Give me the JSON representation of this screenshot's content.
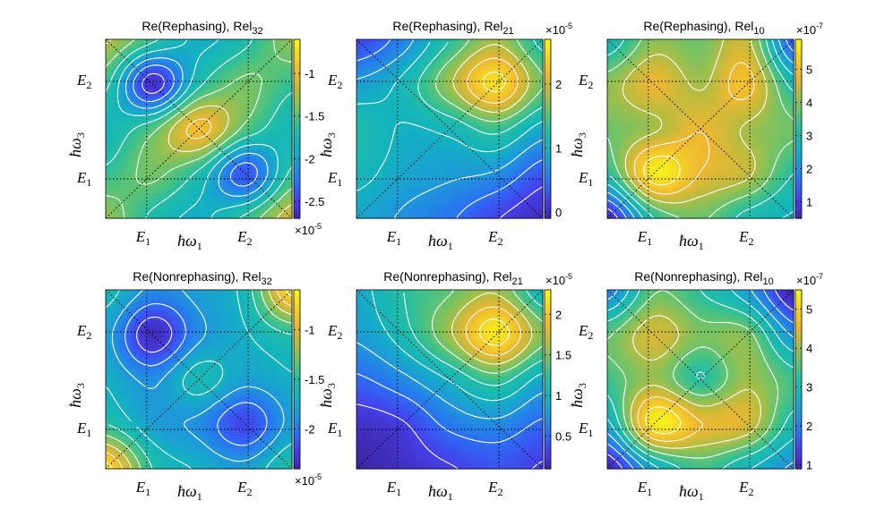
{
  "figure": {
    "xlabel": "ħω",
    "xlabel_sub": "1",
    "ylabel": "ħω",
    "ylabel_sub": "3"
  },
  "ticks": {
    "x": [
      {
        "main": "E",
        "sub": "1"
      },
      {
        "main": "E",
        "sub": "2"
      }
    ],
    "y": [
      {
        "main": "E",
        "sub": "2"
      },
      {
        "main": "E",
        "sub": "1"
      }
    ]
  },
  "colormap": [
    "#3e26a8",
    "#4640ea",
    "#2b6ff4",
    "#1f96db",
    "#13b3c0",
    "#23bea2",
    "#64c46e",
    "#b0bd43",
    "#eeb731",
    "#f4d427",
    "#f9fb15"
  ],
  "chart_data": [
    {
      "type": "heatmap",
      "title_main": "Re(Rephasing), Rel",
      "title_sub": "32",
      "xlabel": "ħω1",
      "ylabel": "ħω3",
      "grid": {
        "x": [
          0,
          0.25,
          0.5,
          0.75,
          1
        ],
        "y": [
          0,
          0.25,
          0.5,
          0.75,
          1
        ]
      },
      "values": [
        [
          -1.2,
          -1.6,
          -1.9,
          -1.7,
          -1.3
        ],
        [
          -1.6,
          -2.6,
          -1.7,
          -1.4,
          -1.6
        ],
        [
          -1.8,
          -1.5,
          -0.95,
          -1.5,
          -1.8
        ],
        [
          -1.6,
          -1.4,
          -1.7,
          -2.4,
          -1.6
        ],
        [
          -1.3,
          -1.7,
          -1.9,
          -1.6,
          -1.1
        ]
      ],
      "colorbar": {
        "min": -2.7,
        "max": -0.6,
        "ticks": [
          "-1",
          "-1.5",
          "-2",
          "-2.5"
        ],
        "tick_values": [
          -1,
          -1.5,
          -2,
          -2.5
        ],
        "multiplier": "×10",
        "exponent": "-5",
        "multiplier_pos": "bottom"
      }
    },
    {
      "type": "heatmap",
      "title_main": "Re(Rephasing), Rel",
      "title_sub": "21",
      "xlabel": "ħω1",
      "ylabel": "ħω3",
      "grid": {
        "x": [
          0,
          0.25,
          0.5,
          0.75,
          1
        ],
        "y": [
          0,
          0.25,
          0.5,
          0.75,
          1
        ]
      },
      "values": [
        [
          0.2,
          0.6,
          1.3,
          1.8,
          1.2
        ],
        [
          0.8,
          1.1,
          1.8,
          2.5,
          1.6
        ],
        [
          1.2,
          1.0,
          1.1,
          1.4,
          0.9
        ],
        [
          1.1,
          0.9,
          0.8,
          0.7,
          0.3
        ],
        [
          0.9,
          0.7,
          0.5,
          0.2,
          0.0
        ]
      ],
      "colorbar": {
        "min": -0.1,
        "max": 2.7,
        "ticks": [
          "2",
          "1",
          "0"
        ],
        "tick_values": [
          2,
          1,
          0
        ],
        "multiplier": "×10",
        "exponent": "-5",
        "multiplier_pos": "top"
      }
    },
    {
      "type": "heatmap",
      "title_main": "Re(Rephasing), Rel",
      "title_sub": "10",
      "xlabel": "ħω1",
      "ylabel": "ħω3",
      "grid": {
        "x": [
          0,
          0.25,
          0.5,
          0.75,
          1
        ],
        "y": [
          0,
          0.25,
          0.5,
          0.75,
          1
        ]
      },
      "values": [
        [
          2.8,
          4.0,
          3.8,
          4.4,
          1.2
        ],
        [
          4.0,
          4.8,
          4.2,
          5.0,
          3.0
        ],
        [
          3.8,
          4.2,
          4.8,
          4.2,
          3.8
        ],
        [
          3.2,
          5.7,
          4.8,
          4.4,
          3.2
        ],
        [
          0.6,
          3.2,
          3.8,
          3.0,
          2.6
        ]
      ],
      "colorbar": {
        "min": 0.5,
        "max": 5.9,
        "ticks": [
          "5",
          "4",
          "3",
          "2",
          "1"
        ],
        "tick_values": [
          5,
          4,
          3,
          2,
          1
        ],
        "multiplier": "×10",
        "exponent": "-7",
        "multiplier_pos": "top"
      }
    },
    {
      "type": "heatmap",
      "title_main": "Re(Nonrephasing), Rel",
      "title_sub": "32",
      "xlabel": "ħω1",
      "ylabel": "ħω3",
      "grid": {
        "x": [
          0,
          0.25,
          0.5,
          0.75,
          1
        ],
        "y": [
          0,
          0.25,
          0.5,
          0.75,
          1
        ]
      },
      "values": [
        [
          -1.6,
          -1.9,
          -1.8,
          -1.6,
          -0.7
        ],
        [
          -1.8,
          -2.35,
          -1.9,
          -1.7,
          -1.5
        ],
        [
          -1.7,
          -1.9,
          -1.6,
          -1.8,
          -1.7
        ],
        [
          -1.5,
          -1.8,
          -1.9,
          -2.2,
          -1.8
        ],
        [
          -0.7,
          -1.5,
          -1.7,
          -1.8,
          -1.5
        ]
      ],
      "colorbar": {
        "min": -2.4,
        "max": -0.6,
        "ticks": [
          "-1",
          "-1.5",
          "-2"
        ],
        "tick_values": [
          -1,
          -1.5,
          -2
        ],
        "multiplier": "×10",
        "exponent": "-5",
        "multiplier_pos": "bottom"
      }
    },
    {
      "type": "heatmap",
      "title_main": "Re(Nonrephasing), Rel",
      "title_sub": "21",
      "xlabel": "ħω1",
      "ylabel": "ħω3",
      "grid": {
        "x": [
          0,
          0.25,
          0.5,
          0.75,
          1
        ],
        "y": [
          0,
          0.25,
          0.5,
          0.75,
          1
        ]
      },
      "values": [
        [
          0.9,
          1.2,
          1.4,
          1.6,
          1.0
        ],
        [
          0.8,
          1.1,
          1.6,
          2.2,
          1.5
        ],
        [
          0.5,
          0.7,
          1.0,
          1.3,
          0.9
        ],
        [
          0.2,
          0.3,
          0.6,
          0.7,
          0.5
        ],
        [
          0.1,
          0.2,
          0.3,
          0.4,
          0.3
        ]
      ],
      "colorbar": {
        "min": 0.1,
        "max": 2.3,
        "ticks": [
          "2",
          "1.5",
          "1",
          "0.5"
        ],
        "tick_values": [
          2,
          1.5,
          1,
          0.5
        ],
        "multiplier": "×10",
        "exponent": "-5",
        "multiplier_pos": "top"
      }
    },
    {
      "type": "heatmap",
      "title_main": "Re(Nonrephasing), Rel",
      "title_sub": "10",
      "xlabel": "ħω1",
      "ylabel": "ħω3",
      "grid": {
        "x": [
          0,
          0.25,
          0.5,
          0.75,
          1
        ],
        "y": [
          0,
          0.25,
          0.5,
          0.75,
          1
        ]
      },
      "values": [
        [
          2.0,
          3.6,
          3.2,
          2.4,
          0.8
        ],
        [
          3.6,
          4.4,
          3.8,
          3.8,
          2.2
        ],
        [
          3.4,
          4.0,
          3.2,
          4.0,
          3.4
        ],
        [
          2.6,
          5.3,
          4.6,
          4.4,
          3.0
        ],
        [
          0.9,
          2.6,
          3.4,
          2.8,
          2.2
        ]
      ],
      "colorbar": {
        "min": 0.9,
        "max": 5.5,
        "ticks": [
          "5",
          "4",
          "3",
          "2",
          "1"
        ],
        "tick_values": [
          5,
          4,
          3,
          2,
          1
        ],
        "multiplier": "×10",
        "exponent": "-7",
        "multiplier_pos": "top"
      }
    }
  ]
}
